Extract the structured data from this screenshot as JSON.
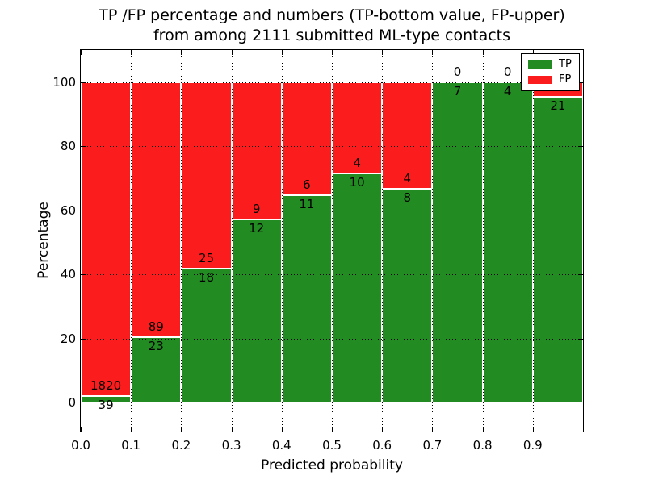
{
  "title": {
    "line1": "TP /FP percentage and numbers (TP-bottom value, FP-upper)",
    "line2": "from among 2111 submitted ML-type contacts"
  },
  "chart_data": {
    "type": "bar",
    "stacked": true,
    "title": "TP /FP percentage and numbers (TP-bottom value, FP-upper) from among 2111 submitted ML-type contacts",
    "xlabel": "Predicted probability",
    "ylabel": "Percentage",
    "xlim": [
      0,
      1
    ],
    "ylim": [
      -9,
      110
    ],
    "y_ticks": [
      0,
      20,
      40,
      60,
      80,
      100
    ],
    "x_tick_labels": [
      "0.0",
      "0.1",
      "0.2",
      "0.3",
      "0.4",
      "0.5",
      "0.6",
      "0.7",
      "0.8",
      "0.9"
    ],
    "grid": "dotted",
    "total_contacts": 2111,
    "colors": {
      "tp": "#228b22",
      "fp": "#fb1d1d",
      "bar_edge": "#ffffff"
    },
    "legend": {
      "position": "upper-right",
      "entries": [
        {
          "label": "TP",
          "color": "#228b22"
        },
        {
          "label": "FP",
          "color": "#fb1d1d"
        }
      ]
    },
    "bins": [
      {
        "range": "0.0-0.1",
        "tp": 39,
        "fp": 1820,
        "tp_pct": 2.1,
        "tp_label": "39",
        "fp_label": "1820"
      },
      {
        "range": "0.1-0.2",
        "tp": 23,
        "fp": 89,
        "tp_pct": 20.5,
        "tp_label": "23",
        "fp_label": "89"
      },
      {
        "range": "0.2-0.3",
        "tp": 18,
        "fp": 25,
        "tp_pct": 41.9,
        "tp_label": "18",
        "fp_label": "25"
      },
      {
        "range": "0.3-0.4",
        "tp": 12,
        "fp": 9,
        "tp_pct": 57.1,
        "tp_label": "12",
        "fp_label": "9"
      },
      {
        "range": "0.4-0.5",
        "tp": 11,
        "fp": 6,
        "tp_pct": 64.7,
        "tp_label": "11",
        "fp_label": "6"
      },
      {
        "range": "0.5-0.6",
        "tp": 10,
        "fp": 4,
        "tp_pct": 71.4,
        "tp_label": "10",
        "fp_label": "4"
      },
      {
        "range": "0.6-0.7",
        "tp": 8,
        "fp": 4,
        "tp_pct": 66.7,
        "tp_label": "8",
        "fp_label": "4"
      },
      {
        "range": "0.7-0.8",
        "tp": 7,
        "fp": 0,
        "tp_pct": 100,
        "tp_label": "7",
        "fp_label": "0"
      },
      {
        "range": "0.8-0.9",
        "tp": 4,
        "fp": 0,
        "tp_pct": 100,
        "tp_label": "4",
        "fp_label": "0"
      },
      {
        "range": "0.9-1.0",
        "tp": 21,
        "tp_pct": 95.5,
        "tp_label": "21",
        "fp_label": ""
      }
    ]
  }
}
